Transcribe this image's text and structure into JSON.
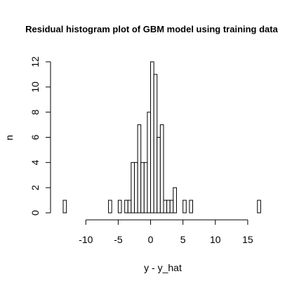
{
  "chart_data": {
    "type": "bar",
    "title": "Residual histogram plot of GBM model using training data",
    "xlabel": "y - y_hat",
    "ylabel": "n",
    "xlim": [
      -13.5,
      17.5
    ],
    "ylim": [
      0,
      12
    ],
    "x_ticks": [
      -10,
      -5,
      0,
      5,
      10,
      15
    ],
    "y_ticks": [
      0,
      2,
      4,
      6,
      8,
      10,
      12
    ],
    "bin_width": 0.5,
    "bins": [
      {
        "x0": -13.5,
        "count": 1
      },
      {
        "x0": -6.5,
        "count": 1
      },
      {
        "x0": -5.0,
        "count": 1
      },
      {
        "x0": -4.0,
        "count": 1
      },
      {
        "x0": -3.5,
        "count": 1
      },
      {
        "x0": -3.0,
        "count": 4
      },
      {
        "x0": -2.5,
        "count": 4
      },
      {
        "x0": -2.0,
        "count": 7
      },
      {
        "x0": -1.5,
        "count": 4
      },
      {
        "x0": -1.0,
        "count": 4
      },
      {
        "x0": -0.5,
        "count": 8
      },
      {
        "x0": 0.0,
        "count": 12
      },
      {
        "x0": 0.5,
        "count": 11
      },
      {
        "x0": 1.0,
        "count": 6
      },
      {
        "x0": 1.5,
        "count": 7
      },
      {
        "x0": 2.0,
        "count": 1
      },
      {
        "x0": 2.5,
        "count": 1
      },
      {
        "x0": 3.0,
        "count": 1
      },
      {
        "x0": 3.5,
        "count": 2
      },
      {
        "x0": 5.0,
        "count": 1
      },
      {
        "x0": 6.0,
        "count": 1
      },
      {
        "x0": 16.5,
        "count": 1
      }
    ],
    "grid": false,
    "legend": "none"
  }
}
